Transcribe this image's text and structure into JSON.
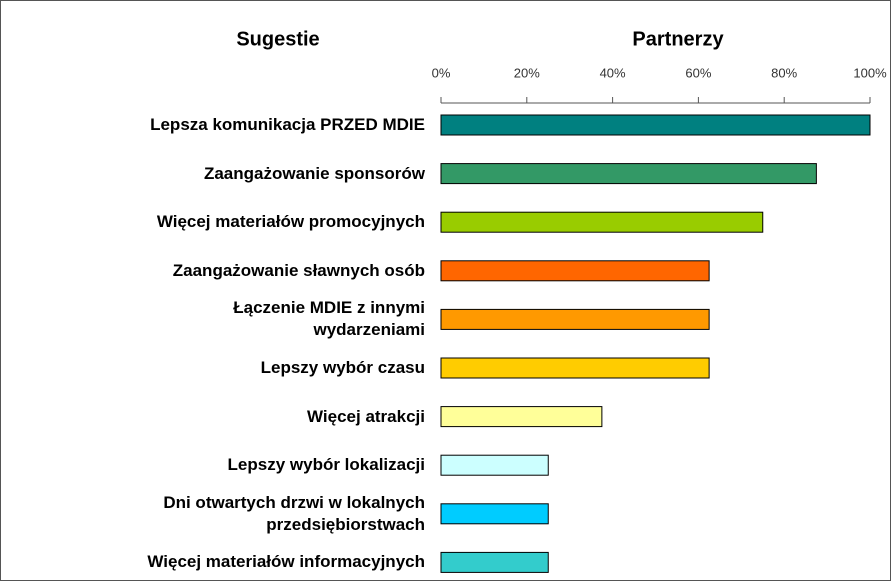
{
  "chart_data": {
    "type": "bar",
    "orientation": "horizontal",
    "category_header": "Sugestie",
    "title": "Partnerzy",
    "categories": [
      "Lepsza komunikacja PRZED MDIE",
      "Zaangażowanie sponsorów",
      "Więcej materiałów promocyjnych",
      "Zaangażowanie sławnych osób",
      "Łączenie MDIE z innymi\nwydarzeniami",
      "Lepszy wybór czasu",
      "Więcej atrakcji",
      "Lepszy wybór lokalizacji",
      "Dni otwartych drzwi w lokalnych\nprzedsiębiorstwach",
      "Więcej materiałów informacyjnych"
    ],
    "values": [
      100,
      87.5,
      75,
      62.5,
      62.5,
      62.5,
      37.5,
      25,
      25,
      25
    ],
    "colors": [
      "#008080",
      "#339966",
      "#99cc00",
      "#ff6600",
      "#ff9900",
      "#ffcc00",
      "#ffff99",
      "#ccffff",
      "#00ccff",
      "#33cccc"
    ],
    "xlim": [
      0,
      100
    ],
    "xticks": [
      {
        "value": 0,
        "label": "0%"
      },
      {
        "value": 20,
        "label": "20%"
      },
      {
        "value": 40,
        "label": "40%"
      },
      {
        "value": 60,
        "label": "60%"
      },
      {
        "value": 80,
        "label": "80%"
      },
      {
        "value": 100,
        "label": "100%"
      }
    ],
    "grid": false
  }
}
